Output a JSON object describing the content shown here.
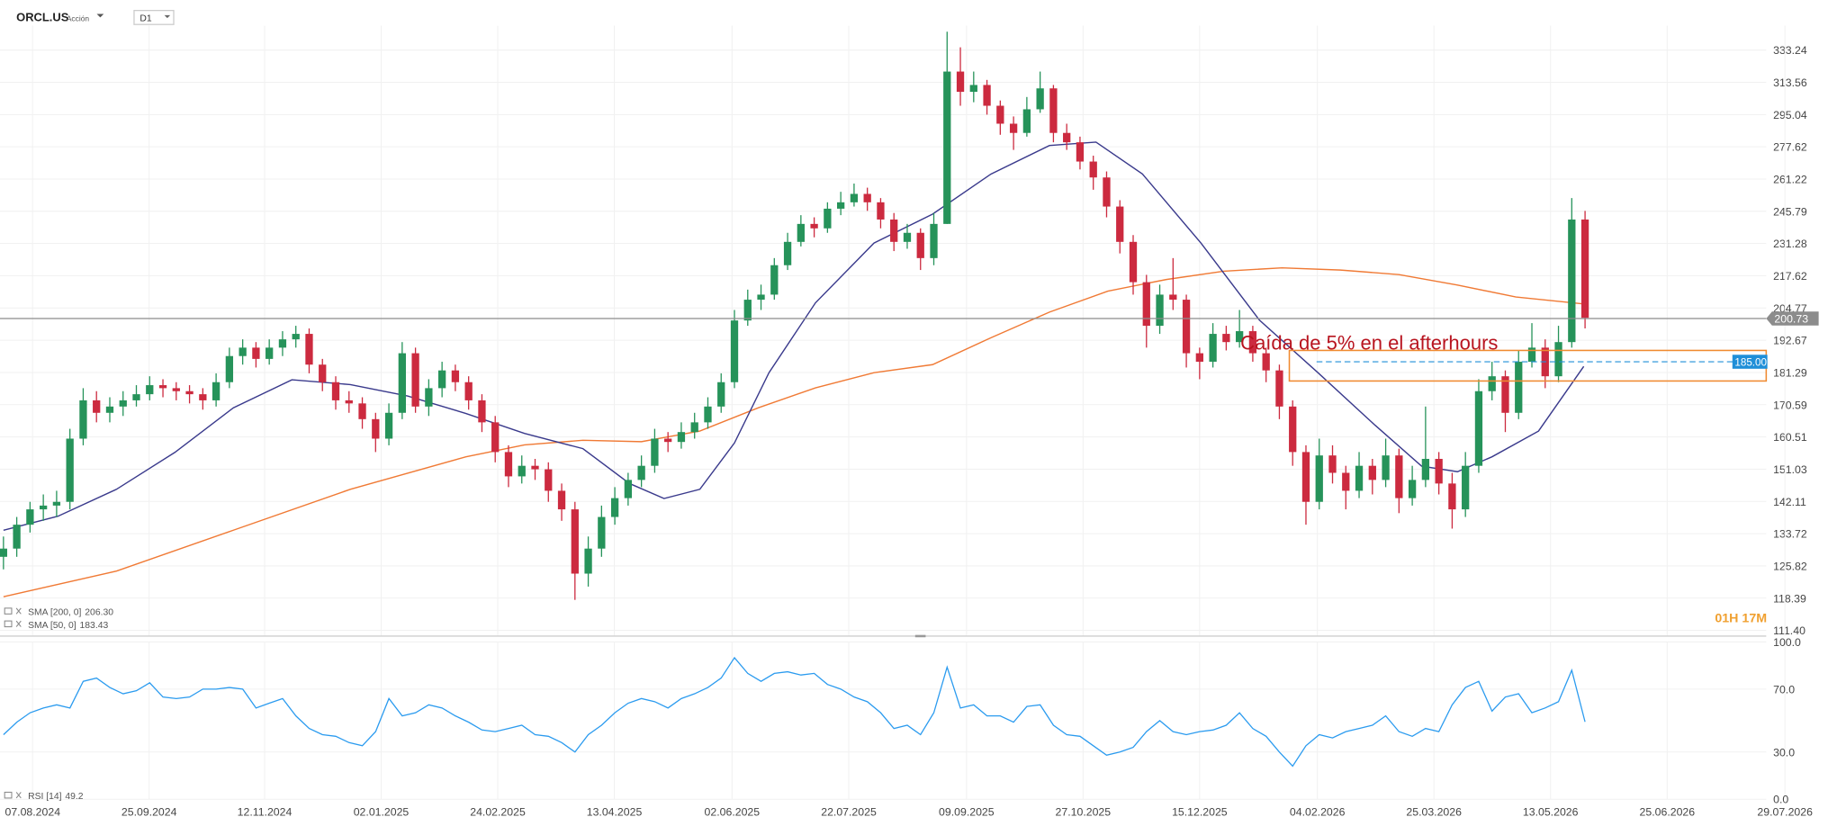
{
  "header": {
    "symbol": "ORCL.US",
    "kind": "Acción",
    "timeframe": "D1",
    "countdown": "01H 17M"
  },
  "chart_data": [
    {
      "type": "candlestick",
      "log": true,
      "grid": true,
      "up_color": "#26935a",
      "down_color": "#cc2a3f",
      "ylim": [
        110.2,
        349.0
      ],
      "yticks": [
        333.24,
        313.56,
        295.04,
        277.62,
        261.22,
        245.79,
        231.28,
        217.62,
        204.77,
        192.67,
        181.29,
        170.59,
        160.51,
        151.03,
        142.11,
        133.72,
        125.82,
        118.39,
        {
          "value": 111.4,
          "label": "111.40"
        }
      ],
      "xlim": [
        -0.26,
        132.63
      ],
      "xticks": [
        {
          "value": 2.19,
          "label": "07.08.2024"
        },
        {
          "value": 10.96,
          "label": "25.09.2024"
        },
        {
          "value": 19.65,
          "label": "12.11.2024"
        },
        {
          "value": 28.42,
          "label": "02.01.2025"
        },
        {
          "value": 37.19,
          "label": "24.02.2025"
        },
        {
          "value": 45.96,
          "label": "13.04.2025"
        },
        {
          "value": 54.82,
          "label": "02.06.2025"
        },
        {
          "value": 63.6,
          "label": "22.07.2025"
        },
        {
          "value": 72.46,
          "label": "09.09.2025"
        },
        {
          "value": 81.23,
          "label": "27.10.2025"
        },
        {
          "value": 90.0,
          "label": "15.12.2025"
        },
        {
          "value": 98.86,
          "label": "04.02.2026"
        },
        {
          "value": 107.63,
          "label": "25.03.2026"
        },
        {
          "value": 116.4,
          "label": "13.05.2026"
        },
        {
          "value": 125.18,
          "label": "25.06.2026"
        },
        {
          "value": 134.04,
          "label": "29.07.2026"
        }
      ],
      "ohlc": [
        [
          128,
          133,
          125,
          130
        ],
        [
          130,
          138,
          128,
          136
        ],
        [
          136,
          142,
          134,
          140
        ],
        [
          140,
          144,
          137,
          141
        ],
        [
          141,
          145,
          138,
          142
        ],
        [
          142,
          163,
          140,
          160
        ],
        [
          160,
          176,
          158,
          172
        ],
        [
          172,
          175,
          165,
          168
        ],
        [
          168,
          173,
          165,
          170
        ],
        [
          170,
          175,
          167,
          172
        ],
        [
          172,
          177,
          170,
          174
        ],
        [
          174,
          180,
          172,
          177
        ],
        [
          177,
          179,
          173,
          176
        ],
        [
          176,
          178,
          172,
          175
        ],
        [
          175,
          177,
          171,
          174
        ],
        [
          174,
          176,
          169,
          172
        ],
        [
          172,
          181,
          170,
          178
        ],
        [
          178,
          190,
          176,
          187
        ],
        [
          187,
          193,
          184,
          190
        ],
        [
          190,
          192,
          183,
          186
        ],
        [
          186,
          193,
          184,
          190
        ],
        [
          190,
          196,
          187,
          193
        ],
        [
          193,
          198,
          190,
          195
        ],
        [
          195,
          197,
          181,
          184
        ],
        [
          184,
          186,
          175,
          178
        ],
        [
          178,
          180,
          169,
          172
        ],
        [
          172,
          175,
          168,
          171
        ],
        [
          171,
          173,
          163,
          166
        ],
        [
          166,
          168,
          156,
          160
        ],
        [
          160,
          171,
          158,
          168
        ],
        [
          168,
          192,
          166,
          188
        ],
        [
          188,
          190,
          168,
          170
        ],
        [
          170,
          179,
          167,
          176
        ],
        [
          176,
          185,
          173,
          182
        ],
        [
          182,
          184,
          175,
          178
        ],
        [
          178,
          180,
          169,
          172
        ],
        [
          172,
          174,
          162,
          165
        ],
        [
          165,
          167,
          153,
          156
        ],
        [
          156,
          158,
          146,
          149
        ],
        [
          149,
          155,
          147,
          152
        ],
        [
          152,
          154,
          148,
          151
        ],
        [
          151,
          153,
          142,
          145
        ],
        [
          145,
          147,
          137,
          140
        ],
        [
          140,
          142,
          118,
          124
        ],
        [
          124,
          133,
          121,
          130
        ],
        [
          130,
          141,
          128,
          138
        ],
        [
          138,
          146,
          136,
          143
        ],
        [
          143,
          150,
          141,
          148
        ],
        [
          148,
          155,
          146,
          152
        ],
        [
          152,
          163,
          150,
          160
        ],
        [
          160,
          162,
          156,
          159
        ],
        [
          159,
          165,
          157,
          162
        ],
        [
          162,
          168,
          160,
          165
        ],
        [
          165,
          173,
          163,
          170
        ],
        [
          170,
          181,
          168,
          178
        ],
        [
          178,
          204,
          176,
          200
        ],
        [
          200,
          212,
          198,
          208
        ],
        [
          208,
          214,
          204,
          210
        ],
        [
          210,
          225,
          208,
          222
        ],
        [
          222,
          236,
          220,
          232
        ],
        [
          232,
          244,
          230,
          240
        ],
        [
          240,
          243,
          234,
          238
        ],
        [
          238,
          250,
          236,
          247
        ],
        [
          247,
          255,
          244,
          250
        ],
        [
          250,
          259,
          248,
          254
        ],
        [
          254,
          257,
          246,
          250
        ],
        [
          250,
          252,
          238,
          242
        ],
        [
          242,
          245,
          228,
          232
        ],
        [
          232,
          240,
          229,
          236
        ],
        [
          236,
          238,
          220,
          225
        ],
        [
          225,
          245,
          222,
          240
        ],
        [
          240,
          345,
          240,
          320
        ],
        [
          320,
          335,
          300,
          308
        ],
        [
          308,
          320,
          302,
          312
        ],
        [
          312,
          315,
          295,
          300
        ],
        [
          300,
          303,
          284,
          290
        ],
        [
          290,
          294,
          276,
          285
        ],
        [
          285,
          305,
          283,
          298
        ],
        [
          298,
          320,
          296,
          310
        ],
        [
          310,
          312,
          280,
          285
        ],
        [
          285,
          290,
          276,
          280
        ],
        [
          280,
          283,
          266,
          270
        ],
        [
          270,
          273,
          256,
          262
        ],
        [
          262,
          265,
          243,
          248
        ],
        [
          248,
          251,
          227,
          232
        ],
        [
          232,
          235,
          210,
          215
        ],
        [
          215,
          218,
          190,
          198
        ],
        [
          198,
          214,
          195,
          210
        ],
        [
          210,
          225,
          204,
          208
        ],
        [
          208,
          210,
          183,
          188
        ],
        [
          188,
          190,
          179,
          185
        ],
        [
          185,
          199,
          183,
          195
        ],
        [
          195,
          198,
          189,
          192
        ],
        [
          192,
          204,
          190,
          196
        ],
        [
          196,
          198,
          185,
          188
        ],
        [
          188,
          190,
          178,
          182
        ],
        [
          182,
          184,
          166,
          170
        ],
        [
          170,
          172,
          152,
          156
        ],
        [
          156,
          158,
          136,
          142
        ],
        [
          142,
          160,
          140,
          155
        ],
        [
          155,
          158,
          147,
          150
        ],
        [
          150,
          152,
          140,
          145
        ],
        [
          145,
          156,
          143,
          152
        ],
        [
          152,
          154,
          144,
          148
        ],
        [
          148,
          160,
          146,
          155
        ],
        [
          155,
          157,
          139,
          143
        ],
        [
          143,
          152,
          141,
          148
        ],
        [
          148,
          170,
          146,
          154
        ],
        [
          154,
          156,
          144,
          147
        ],
        [
          147,
          150,
          135,
          140
        ],
        [
          140,
          156,
          138,
          152
        ],
        [
          152,
          179,
          150,
          175
        ],
        [
          175,
          185,
          172,
          180
        ],
        [
          180,
          182,
          162,
          168
        ],
        [
          168,
          189,
          166,
          185
        ],
        [
          185,
          199,
          183,
          190
        ],
        [
          190,
          193,
          176,
          180
        ],
        [
          180,
          198,
          178,
          192
        ],
        [
          192,
          252,
          190,
          242
        ],
        [
          242,
          246,
          197,
          201
        ]
      ],
      "series": [
        {
          "name": "SMA [200, 0]",
          "color": "#f07a35",
          "last": {
            "value": 206.3,
            "label": "206.30"
          },
          "x": [
            0,
            8.5,
            17.3,
            26.1,
            34.8,
            39.2,
            43.6,
            48.0,
            52.4,
            56.8,
            61.1,
            65.5,
            69.9,
            74.3,
            78.7,
            83.1,
            87.5,
            91.8,
            96.2,
            100.6,
            105.0,
            109.4,
            113.8,
            119
          ],
          "values": [
            118.7,
            124.6,
            134.6,
            145.4,
            154.6,
            158.1,
            159.5,
            159.1,
            162.3,
            169.6,
            176.1,
            181.2,
            184.0,
            193.6,
            203.2,
            211.4,
            216.1,
            219.5,
            220.9,
            220.0,
            218.1,
            213.8,
            209.1,
            206.3
          ]
        },
        {
          "name": "SMA [50, 0]",
          "color": "#3a3a8c",
          "last": 183.43,
          "x": [
            0,
            4.1,
            8.5,
            12.9,
            17.3,
            21.7,
            26.1,
            30.4,
            34.8,
            39.2,
            43.6,
            47.1,
            49.7,
            52.4,
            55.0,
            57.6,
            61.1,
            65.5,
            69.9,
            74.3,
            78.7,
            82.2,
            85.7,
            90.1,
            94.5,
            98.9,
            103.2,
            106.7,
            109.4,
            112.0,
            115.5,
            118.9
          ],
          "values": [
            134.6,
            138.2,
            145.4,
            155.9,
            169.6,
            178.8,
            177.2,
            173.4,
            167.8,
            161.6,
            157.0,
            147.0,
            142.9,
            145.4,
            158.7,
            181.2,
            206.8,
            231.5,
            244.5,
            263.7,
            278.3,
            280.1,
            263.7,
            231.5,
            200.1,
            181.2,
            164.1,
            151.9,
            150.3,
            154.6,
            162.3,
            183.4
          ]
        }
      ],
      "hlines": [
        {
          "value": 200.73,
          "color": "#8c8c8c"
        },
        {
          "value": 185,
          "label": "185.00",
          "color": "#1f8fd8",
          "dashed": true,
          "from": 98.8
        }
      ],
      "zone": {
        "from": 96.75,
        "range": [
          178.4,
          189.0
        ],
        "color": "#f08a30"
      },
      "annotation": "Caída de 5% en el afterhours"
    },
    {
      "type": "line",
      "grid": true,
      "ylim": [
        0,
        100
      ],
      "yticks": [
        {
          "value": 100,
          "label": "100.0"
        },
        {
          "value": 70,
          "label": "70.0"
        },
        {
          "value": 30,
          "label": "30.0"
        },
        {
          "value": 0,
          "label": "0.0"
        }
      ],
      "series": [
        {
          "name": "RSI [14]",
          "color": "#2b9bef",
          "last": 49.2,
          "values": [
            41,
            49,
            55,
            58,
            60,
            58,
            75,
            77,
            71,
            67,
            69,
            74,
            65,
            64,
            65,
            70,
            70,
            71,
            70,
            58,
            61,
            64,
            53,
            45,
            41,
            40,
            36,
            34,
            43,
            64,
            53,
            55,
            60,
            58,
            53,
            49,
            44,
            43,
            45,
            47,
            41,
            40,
            36,
            30,
            41,
            47,
            55,
            61,
            64,
            62,
            58,
            64,
            67,
            71,
            77,
            90,
            80,
            75,
            80,
            81,
            79,
            80,
            73,
            70,
            65,
            62,
            55,
            45,
            47,
            41,
            55,
            84,
            58,
            60,
            53,
            53,
            49,
            59,
            60,
            47,
            41,
            40,
            34,
            28,
            30,
            33,
            43,
            50,
            43,
            41,
            43,
            44,
            47,
            55,
            45,
            40,
            30,
            21,
            34,
            41,
            39,
            43,
            45,
            47,
            53,
            43,
            40,
            45,
            43,
            60,
            71,
            75,
            56,
            65,
            67,
            55,
            58,
            62,
            82,
            49.2
          ]
        }
      ]
    }
  ]
}
